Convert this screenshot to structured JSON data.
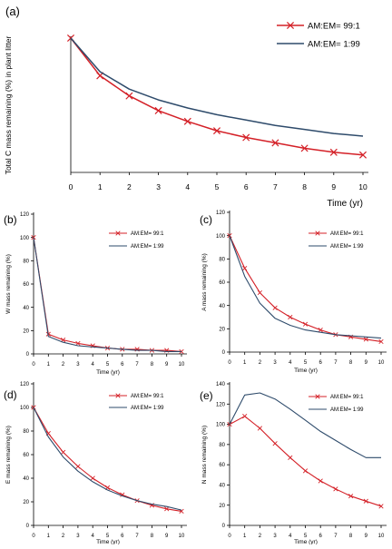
{
  "chart_data": [
    {
      "panel_label": "(a)",
      "type": "line",
      "xlabel": "Time (yr)",
      "ylabel": "Total C mass remaining (%) in plant litter",
      "x": [
        0,
        1,
        2,
        3,
        4,
        5,
        6,
        7,
        8,
        9,
        10
      ],
      "xlim": [
        0,
        10
      ],
      "ylim": [
        0,
        100
      ],
      "y_ticks_shown": false,
      "grid": false,
      "legend_position": "top-right",
      "series": [
        {
          "name": "AM:EM= 99:1",
          "color": "#d42027",
          "marker": "x",
          "values": [
            100,
            72,
            57,
            46,
            38,
            31,
            26,
            22,
            18,
            15,
            13
          ]
        },
        {
          "name": "AM:EM= 1:99",
          "color": "#2e4b6b",
          "marker": "none",
          "values": [
            100,
            75,
            62,
            54,
            48,
            43,
            39,
            35,
            32,
            29,
            27
          ]
        }
      ]
    },
    {
      "panel_label": "(b)",
      "type": "line",
      "xlabel": "Time (yr)",
      "ylabel": "W mass remaining (%)",
      "x": [
        0,
        1,
        2,
        3,
        4,
        5,
        6,
        7,
        8,
        9,
        10
      ],
      "xlim": [
        0,
        10
      ],
      "ylim": [
        0,
        120
      ],
      "y_ticks": [
        0,
        20,
        40,
        60,
        80,
        100,
        120
      ],
      "grid": false,
      "legend_position": "top-right",
      "series": [
        {
          "name": "AM:EM= 99:1",
          "color": "#d42027",
          "marker": "x",
          "values": [
            100,
            17,
            12,
            9,
            7,
            5,
            4,
            4,
            3,
            3,
            2
          ]
        },
        {
          "name": "AM:EM= 1:99",
          "color": "#2e4b6b",
          "marker": "none",
          "values": [
            100,
            15,
            10,
            7,
            6,
            5,
            4,
            3,
            3,
            2,
            2
          ]
        }
      ]
    },
    {
      "panel_label": "(c)",
      "type": "line",
      "xlabel": "Time (yr)",
      "ylabel": "A mass remaining (%)",
      "x": [
        0,
        1,
        2,
        3,
        4,
        5,
        6,
        7,
        8,
        9,
        10
      ],
      "xlim": [
        0,
        10
      ],
      "ylim": [
        0,
        120
      ],
      "y_ticks": [
        0,
        20,
        40,
        60,
        80,
        100,
        120
      ],
      "grid": false,
      "legend_position": "top-right",
      "series": [
        {
          "name": "AM:EM= 99:1",
          "color": "#d42027",
          "marker": "x",
          "values": [
            100,
            72,
            51,
            38,
            30,
            24,
            19,
            15,
            13,
            11,
            9
          ]
        },
        {
          "name": "AM:EM= 1:99",
          "color": "#2e4b6b",
          "marker": "none",
          "values": [
            100,
            65,
            42,
            29,
            23,
            19,
            17,
            15,
            14,
            13,
            12
          ]
        }
      ]
    },
    {
      "panel_label": "(d)",
      "type": "line",
      "xlabel": "Time (yr)",
      "ylabel": "E mass remaining (%)",
      "x": [
        0,
        1,
        2,
        3,
        4,
        5,
        6,
        7,
        8,
        9,
        10
      ],
      "xlim": [
        0,
        10
      ],
      "ylim": [
        0,
        120
      ],
      "y_ticks": [
        0,
        20,
        40,
        60,
        80,
        100,
        120
      ],
      "grid": false,
      "legend_position": "top-right",
      "series": [
        {
          "name": "AM:EM= 99:1",
          "color": "#d42027",
          "marker": "x",
          "values": [
            100,
            78,
            62,
            50,
            40,
            32,
            26,
            21,
            17,
            14,
            12
          ]
        },
        {
          "name": "AM:EM= 1:99",
          "color": "#2e4b6b",
          "marker": "none",
          "values": [
            100,
            75,
            58,
            46,
            37,
            30,
            25,
            21,
            18,
            16,
            13
          ]
        }
      ]
    },
    {
      "panel_label": "(e)",
      "type": "line",
      "xlabel": "Time (yr)",
      "ylabel": "N mass remaining (%)",
      "x": [
        0,
        1,
        2,
        3,
        4,
        5,
        6,
        7,
        8,
        9,
        10
      ],
      "xlim": [
        0,
        10
      ],
      "ylim": [
        0,
        140
      ],
      "y_ticks": [
        0,
        20,
        40,
        60,
        80,
        100,
        120,
        140
      ],
      "grid": false,
      "legend_position": "top-right",
      "series": [
        {
          "name": "AM:EM= 99:1",
          "color": "#d42027",
          "marker": "x",
          "values": [
            100,
            108,
            96,
            81,
            67,
            54,
            44,
            36,
            29,
            24,
            19
          ]
        },
        {
          "name": "AM:EM= 1:99",
          "color": "#2e4b6b",
          "marker": "none",
          "values": [
            100,
            129,
            131,
            125,
            115,
            104,
            93,
            84,
            75,
            67,
            67
          ]
        }
      ]
    }
  ]
}
